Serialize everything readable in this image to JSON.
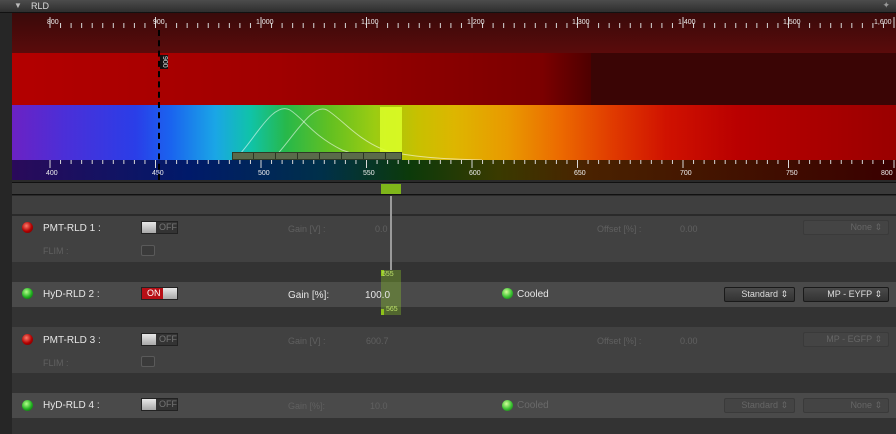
{
  "panel": {
    "title": "RLD",
    "collapse_icon": "chevron-down-icon",
    "pin_icon": "pin-icon"
  },
  "laser_scale": {
    "ticks": [
      "800",
      "900",
      "1,000",
      "1,100",
      "1,200",
      "1,300",
      "1,400",
      "1,500",
      "1,600"
    ],
    "laser_line_label": "900"
  },
  "spectrum_scale": {
    "ticks": [
      "400",
      "450",
      "500",
      "550",
      "600",
      "650",
      "700",
      "750",
      "800"
    ],
    "band_low": "555",
    "band_high": "565"
  },
  "channels": [
    {
      "name": "PMT-RLD 1 :",
      "led": "red",
      "toggle": "OFF",
      "state": "off",
      "flim_label": "FLIM :",
      "gain_label": "Gain [V] :",
      "gain_value": "0.0",
      "offset_label": "Offset [%] :",
      "offset_value": "0.00",
      "dye": "None"
    },
    {
      "name": "HyD-RLD 2 :",
      "led": "green",
      "toggle": "ON",
      "state": "on",
      "gain_label": "Gain [%]:",
      "gain_value": "100.0",
      "cooled_label": "Cooled",
      "mode": "Standard",
      "dye": "MP - EYFP"
    },
    {
      "name": "PMT-RLD 3 :",
      "led": "red",
      "toggle": "OFF",
      "state": "off",
      "flim_label": "FLIM :",
      "gain_label": "Gain [V] :",
      "gain_value": "600.7",
      "offset_label": "Offset [%] :",
      "offset_value": "0.00",
      "dye": "MP - EGFP"
    },
    {
      "name": "HyD-RLD 4 :",
      "led": "green",
      "toggle": "OFF",
      "state": "off",
      "gain_label": "Gain [%]:",
      "gain_value": "10.0",
      "cooled_label": "Cooled",
      "mode": "Standard",
      "dye": "None"
    }
  ],
  "colors": {
    "on_toggle": "#b70f16",
    "emission_band": "#dcff28",
    "accent_green": "#7fb51a"
  }
}
